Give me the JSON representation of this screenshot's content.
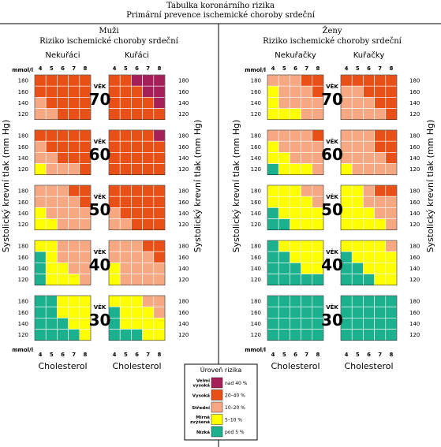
{
  "header": {
    "title_line1": "Tabulka koronárního rizika",
    "title_line2": "Primární prevence ischemické choroby srdeční"
  },
  "chart_data": {
    "type": "heatmap",
    "cholesterol_ticks": [
      "4",
      "5",
      "6",
      "7",
      "8"
    ],
    "bp_ticks": [
      "180",
      "160",
      "140",
      "120"
    ],
    "axis_unit_label": "mmol/l",
    "x_axis_label": "Cholesterol",
    "y_axis_label": "Systolický krevní tlak (mm Hg)",
    "age_groups": [
      "70",
      "60",
      "50",
      "40",
      "30"
    ],
    "age_label": "VĚK",
    "colors": {
      "1": "#1bb08e",
      "2": "#ffff00",
      "3": "#f5a882",
      "4": "#e85018",
      "5": "#a52058"
    },
    "panels": [
      {
        "sex": "Muži",
        "subtitle": "Riziko ischemické choroby srdeční",
        "groups": [
          {
            "name": "Nekuřáci",
            "grids": [
              [
                [
                  4,
                  4,
                  4,
                  4,
                  4
                ],
                [
                  4,
                  4,
                  4,
                  4,
                  4
                ],
                [
                  3,
                  4,
                  4,
                  4,
                  4
                ],
                [
                  3,
                  3,
                  4,
                  4,
                  4
                ]
              ],
              [
                [
                  4,
                  4,
                  4,
                  4,
                  4
                ],
                [
                  3,
                  4,
                  4,
                  4,
                  4
                ],
                [
                  3,
                  3,
                  4,
                  4,
                  4
                ],
                [
                  2,
                  3,
                  3,
                  3,
                  4
                ]
              ],
              [
                [
                  3,
                  3,
                  3,
                  4,
                  4
                ],
                [
                  3,
                  3,
                  3,
                  3,
                  4
                ],
                [
                  2,
                  3,
                  3,
                  3,
                  3
                ],
                [
                  2,
                  2,
                  3,
                  3,
                  3
                ]
              ],
              [
                [
                  2,
                  2,
                  3,
                  3,
                  3
                ],
                [
                  1,
                  2,
                  3,
                  3,
                  3
                ],
                [
                  1,
                  2,
                  2,
                  3,
                  3
                ],
                [
                  1,
                  2,
                  2,
                  2,
                  3
                ]
              ],
              [
                [
                  1,
                  1,
                  2,
                  2,
                  2
                ],
                [
                  1,
                  1,
                  2,
                  2,
                  2
                ],
                [
                  1,
                  1,
                  1,
                  2,
                  2
                ],
                [
                  1,
                  1,
                  1,
                  1,
                  2
                ]
              ]
            ]
          },
          {
            "name": "Kuřáci",
            "grids": [
              [
                [
                  4,
                  4,
                  5,
                  5,
                  5
                ],
                [
                  4,
                  4,
                  4,
                  5,
                  5
                ],
                [
                  4,
                  4,
                  4,
                  4,
                  5
                ],
                [
                  4,
                  4,
                  4,
                  4,
                  4
                ]
              ],
              [
                [
                  4,
                  4,
                  4,
                  4,
                  5
                ],
                [
                  4,
                  4,
                  4,
                  4,
                  4
                ],
                [
                  4,
                  4,
                  4,
                  4,
                  4
                ],
                [
                  4,
                  4,
                  4,
                  4,
                  4
                ]
              ],
              [
                [
                  4,
                  4,
                  4,
                  4,
                  4
                ],
                [
                  4,
                  4,
                  4,
                  4,
                  4
                ],
                [
                  3,
                  4,
                  4,
                  4,
                  4
                ],
                [
                  3,
                  3,
                  4,
                  4,
                  4
                ]
              ],
              [
                [
                  3,
                  3,
                  3,
                  4,
                  4
                ],
                [
                  3,
                  3,
                  3,
                  3,
                  4
                ],
                [
                  2,
                  3,
                  3,
                  3,
                  3
                ],
                [
                  2,
                  3,
                  3,
                  3,
                  3
                ]
              ],
              [
                [
                  2,
                  2,
                  2,
                  3,
                  3
                ],
                [
                  1,
                  2,
                  2,
                  2,
                  3
                ],
                [
                  1,
                  2,
                  2,
                  2,
                  2
                ],
                [
                  1,
                  1,
                  1,
                  2,
                  2
                ]
              ]
            ]
          }
        ]
      },
      {
        "sex": "Ženy",
        "subtitle": "Riziko ischemické choroby srdeční",
        "groups": [
          {
            "name": "Nekuřačky",
            "grids": [
              [
                [
                  3,
                  3,
                  3,
                  4,
                  4
                ],
                [
                  2,
                  3,
                  3,
                  3,
                  4
                ],
                [
                  2,
                  3,
                  3,
                  3,
                  3
                ],
                [
                  2,
                  2,
                  2,
                  3,
                  3
                ]
              ],
              [
                [
                  3,
                  3,
                  3,
                  3,
                  4
                ],
                [
                  2,
                  3,
                  3,
                  3,
                  3
                ],
                [
                  2,
                  2,
                  3,
                  3,
                  3
                ],
                [
                  1,
                  2,
                  2,
                  2,
                  3
                ]
              ],
              [
                [
                  2,
                  2,
                  2,
                  3,
                  3
                ],
                [
                  2,
                  2,
                  2,
                  2,
                  3
                ],
                [
                  1,
                  2,
                  2,
                  2,
                  2
                ],
                [
                  1,
                  1,
                  2,
                  2,
                  2
                ]
              ],
              [
                [
                  1,
                  2,
                  2,
                  2,
                  2
                ],
                [
                  1,
                  1,
                  2,
                  2,
                  2
                ],
                [
                  1,
                  1,
                  1,
                  2,
                  2
                ],
                [
                  1,
                  1,
                  1,
                  1,
                  1
                ]
              ],
              [
                [
                  1,
                  1,
                  1,
                  1,
                  1
                ],
                [
                  1,
                  1,
                  1,
                  1,
                  1
                ],
                [
                  1,
                  1,
                  1,
                  1,
                  1
                ],
                [
                  1,
                  1,
                  1,
                  1,
                  1
                ]
              ]
            ]
          },
          {
            "name": "Kuřačky",
            "grids": [
              [
                [
                  4,
                  4,
                  4,
                  4,
                  4
                ],
                [
                  3,
                  3,
                  4,
                  4,
                  4
                ],
                [
                  3,
                  3,
                  3,
                  4,
                  4
                ],
                [
                  3,
                  3,
                  3,
                  3,
                  4
                ]
              ],
              [
                [
                  3,
                  3,
                  3,
                  4,
                  4
                ],
                [
                  3,
                  3,
                  3,
                  4,
                  4
                ],
                [
                  3,
                  3,
                  3,
                  3,
                  4
                ],
                [
                  2,
                  3,
                  3,
                  3,
                  3
                ]
              ],
              [
                [
                  2,
                  2,
                  3,
                  4,
                  4
                ],
                [
                  2,
                  2,
                  3,
                  3,
                  3
                ],
                [
                  2,
                  2,
                  2,
                  3,
                  3
                ],
                [
                  2,
                  2,
                  2,
                  2,
                  3
                ]
              ],
              [
                [
                  2,
                  2,
                  2,
                  2,
                  3
                ],
                [
                  1,
                  2,
                  2,
                  2,
                  2
                ],
                [
                  1,
                  1,
                  2,
                  2,
                  2
                ],
                [
                  1,
                  1,
                  1,
                  2,
                  2
                ]
              ],
              [
                [
                  1,
                  1,
                  1,
                  1,
                  1
                ],
                [
                  1,
                  1,
                  1,
                  1,
                  1
                ],
                [
                  1,
                  1,
                  1,
                  1,
                  1
                ],
                [
                  1,
                  1,
                  1,
                  1,
                  1
                ]
              ]
            ]
          }
        ]
      }
    ],
    "legend": {
      "title": "Úroveň rizika",
      "entries": [
        {
          "level": 5,
          "label": "Velmi vysoká",
          "range": "nad 40 %"
        },
        {
          "level": 4,
          "label": "Vysoká",
          "range": "20–40 %"
        },
        {
          "level": 3,
          "label": "Střední",
          "range": "10–20 %"
        },
        {
          "level": 2,
          "label": "Mírně zvýšená",
          "range": "5–10 %"
        },
        {
          "level": 1,
          "label": "Nízká",
          "range": "pod 5 %"
        }
      ]
    }
  }
}
